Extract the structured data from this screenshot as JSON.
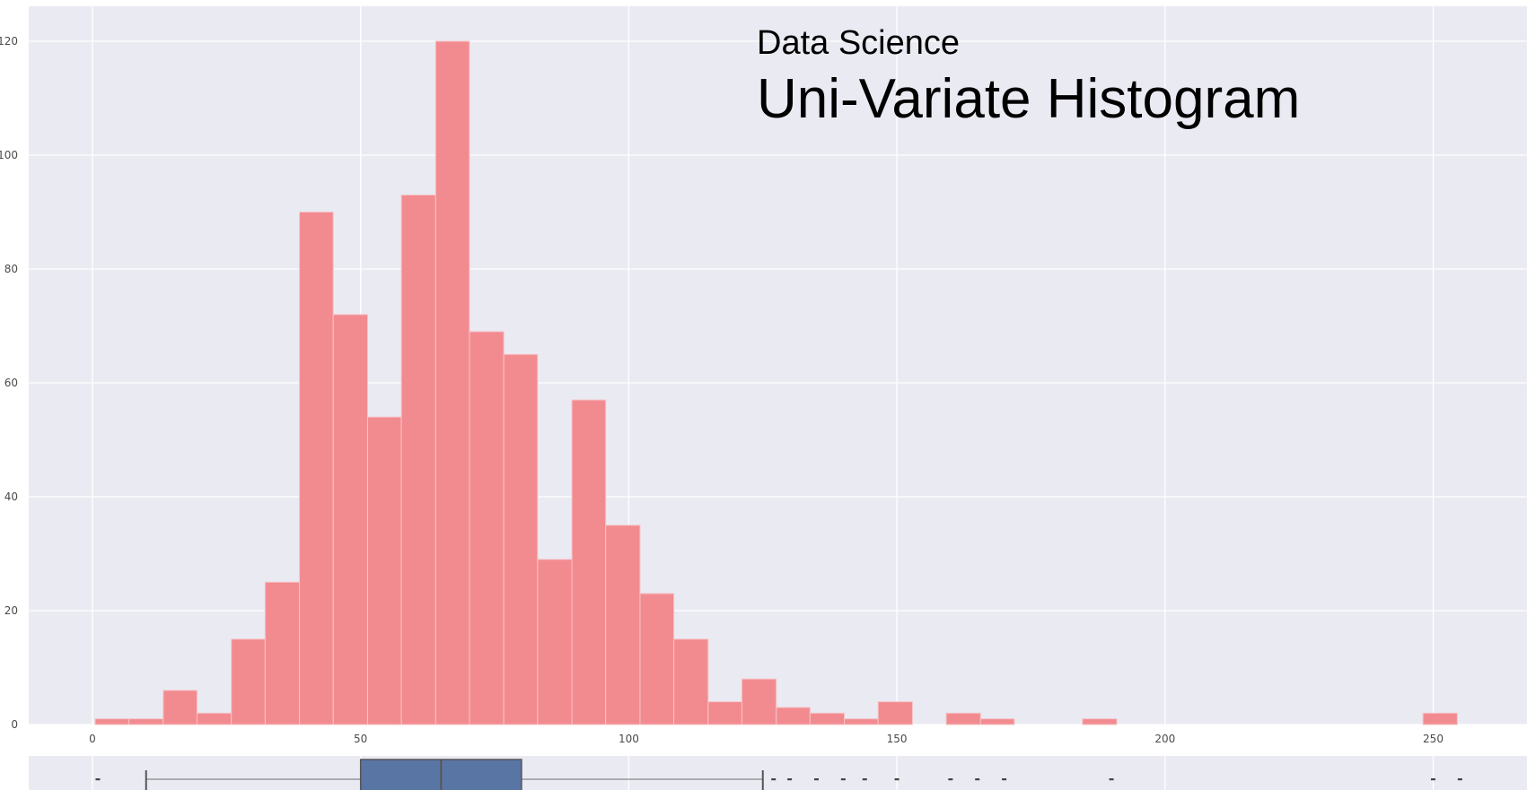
{
  "chart_data": [
    {
      "type": "bar",
      "subtitle": "Data Science",
      "title": "Uni-Variate Histogram",
      "xlabel": "",
      "ylabel": "",
      "xlim": [
        -12,
        268
      ],
      "ylim": [
        0,
        126
      ],
      "xticks": [
        0,
        50,
        100,
        150,
        200,
        250
      ],
      "yticks": [
        0,
        20,
        40,
        60,
        80,
        100,
        120
      ],
      "grid": true,
      "bins": [
        {
          "x0": 0.5,
          "x1": 6.8,
          "count": 1
        },
        {
          "x0": 6.8,
          "x1": 13.2,
          "count": 1
        },
        {
          "x0": 13.2,
          "x1": 19.5,
          "count": 6
        },
        {
          "x0": 19.5,
          "x1": 25.9,
          "count": 2
        },
        {
          "x0": 25.9,
          "x1": 32.2,
          "count": 15
        },
        {
          "x0": 32.2,
          "x1": 38.6,
          "count": 25
        },
        {
          "x0": 38.6,
          "x1": 44.9,
          "count": 90
        },
        {
          "x0": 44.9,
          "x1": 51.3,
          "count": 72
        },
        {
          "x0": 51.3,
          "x1": 57.6,
          "count": 54
        },
        {
          "x0": 57.6,
          "x1": 64.0,
          "count": 93
        },
        {
          "x0": 64.0,
          "x1": 70.3,
          "count": 120
        },
        {
          "x0": 70.3,
          "x1": 76.7,
          "count": 69
        },
        {
          "x0": 76.7,
          "x1": 83.0,
          "count": 65
        },
        {
          "x0": 83.0,
          "x1": 89.4,
          "count": 29
        },
        {
          "x0": 89.4,
          "x1": 95.7,
          "count": 57
        },
        {
          "x0": 95.7,
          "x1": 102.1,
          "count": 35
        },
        {
          "x0": 102.1,
          "x1": 108.4,
          "count": 23
        },
        {
          "x0": 108.4,
          "x1": 114.8,
          "count": 15
        },
        {
          "x0": 114.8,
          "x1": 121.1,
          "count": 4
        },
        {
          "x0": 121.1,
          "x1": 127.5,
          "count": 8
        },
        {
          "x0": 127.5,
          "x1": 133.8,
          "count": 3
        },
        {
          "x0": 133.8,
          "x1": 140.2,
          "count": 2
        },
        {
          "x0": 140.2,
          "x1": 146.5,
          "count": 1
        },
        {
          "x0": 146.5,
          "x1": 152.9,
          "count": 4
        },
        {
          "x0": 159.2,
          "x1": 165.6,
          "count": 2
        },
        {
          "x0": 165.6,
          "x1": 171.9,
          "count": 1
        },
        {
          "x0": 184.6,
          "x1": 191.0,
          "count": 1
        },
        {
          "x0": 248.1,
          "x1": 254.5,
          "count": 2
        }
      ],
      "colors": {
        "bar": "#f28b90",
        "background": "#eaeaf2",
        "grid": "#ffffff"
      }
    },
    {
      "type": "boxplot",
      "whisker_low": 10,
      "q1": 50,
      "median": 65,
      "q3": 80,
      "whisker_high": 125,
      "outliers": [
        1,
        127,
        130,
        135,
        140,
        144,
        150,
        160,
        165,
        170,
        190,
        250,
        255
      ],
      "colors": {
        "box": "#5975a4",
        "line": "#555555"
      }
    }
  ]
}
